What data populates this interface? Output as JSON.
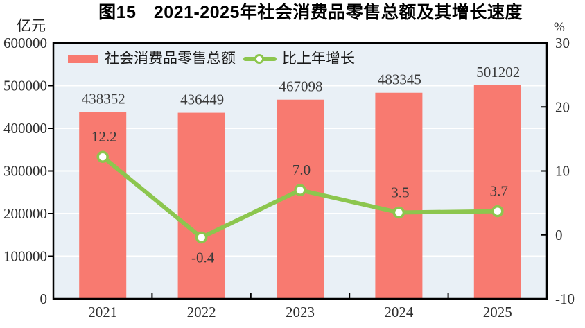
{
  "chart_data": {
    "type": "bar",
    "combo": "bar+line",
    "title": "图15　2021-2025年社会消费品零售总额及其增长速度",
    "categories": [
      "2021",
      "2022",
      "2023",
      "2024",
      "2025"
    ],
    "series": [
      {
        "name": "社会消费品零售总额",
        "kind": "bar",
        "axis": "left",
        "color": "#f87a70",
        "values": [
          438352,
          436449,
          467098,
          483345,
          501202
        ],
        "labels": [
          "438352",
          "436449",
          "467098",
          "483345",
          "501202"
        ]
      },
      {
        "name": "比上年增长",
        "kind": "line",
        "axis": "right",
        "color": "#8cc64e",
        "marker": "circle-white-fill",
        "values": [
          12.2,
          -0.4,
          7.0,
          3.5,
          3.7
        ],
        "labels": [
          "12.2",
          "-0.4",
          "7.0",
          "3.5",
          "3.7"
        ]
      }
    ],
    "left_axis": {
      "unit": "亿元",
      "min": 0,
      "max": 600000,
      "step": 100000,
      "tick_labels": [
        "0",
        "100000",
        "200000",
        "300000",
        "400000",
        "500000",
        "600000"
      ]
    },
    "right_axis": {
      "unit": "%",
      "min": -10,
      "max": 30,
      "step": 10,
      "tick_labels": [
        "-10",
        "0",
        "10",
        "20",
        "30"
      ]
    },
    "legend": {
      "position": "top-left-inside",
      "items": [
        "社会消费品零售总额",
        "比上年增长"
      ]
    },
    "style": {
      "plot_bg": "#e9f0f6",
      "grid_color": "#ffffff",
      "axis_color": "#000000",
      "label_color": "#3a3a3a",
      "grid": "horizontal-on"
    }
  }
}
